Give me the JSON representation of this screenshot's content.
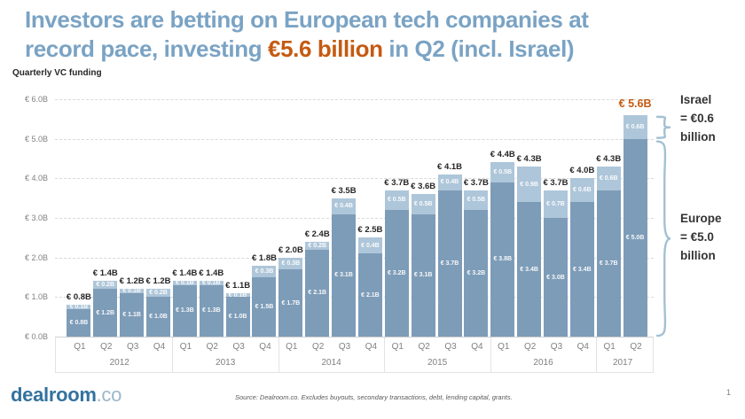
{
  "title": {
    "line1": "Investors are betting on European tech companies at",
    "line2_pre": "record pace, investing ",
    "line2_highlight": "€5.6 billion",
    "line2_post": " in Q2 (incl. Israel)"
  },
  "subtitle": "Quarterly VC funding",
  "annotations": {
    "israel_lines": [
      "Israel",
      "= €0.6",
      "billion"
    ],
    "europe_lines": [
      "Europe",
      "= €5.0",
      "billion"
    ]
  },
  "footer": {
    "logo_main": "dealroom",
    "logo_suffix": ".co",
    "source": "Source: Dealroom.co. Excludes buyouts, secondary transactions, debt, lending capital, grants.",
    "page_number": "1"
  },
  "colors": {
    "title_blue": "#7aa3c4",
    "highlight_orange": "#c55a11",
    "europe_bar": "#7d9cb8",
    "israel_bar": "#aec6d9",
    "brace_blue": "#a3c0d4",
    "axis_text": "#808080",
    "grid_line": "#d9d9d9",
    "logo_blue": "#33729f",
    "logo_suffix_blue": "#9cb8cb"
  },
  "chart_data": {
    "type": "bar",
    "stacked": true,
    "title": "Quarterly VC funding",
    "unit": "EUR billions",
    "ylim": [
      0,
      6
    ],
    "grid": true,
    "series_names": [
      "Europe",
      "Israel"
    ],
    "yticks": [
      {
        "v": 0,
        "label": "€ 0.0B"
      },
      {
        "v": 1,
        "label": "€ 1.0B"
      },
      {
        "v": 2,
        "label": "€ 2.0B"
      },
      {
        "v": 3,
        "label": "€ 3.0B"
      },
      {
        "v": 4,
        "label": "€ 4.0B"
      },
      {
        "v": 5,
        "label": "€ 5.0B"
      },
      {
        "v": 6,
        "label": "€ 6.0B"
      }
    ],
    "groups": [
      {
        "year": "2012",
        "bars": [
          {
            "quarter": "Q1",
            "europe": 0.8,
            "israel": 0.1,
            "total": 0.8,
            "europe_label": "€ 0.8B",
            "israel_label": "€ 0.1B",
            "total_label": "€ 0.8B"
          },
          {
            "quarter": "Q2",
            "europe": 1.2,
            "israel": 0.2,
            "total": 1.4,
            "europe_label": "€ 1.2B",
            "israel_label": "€ 0.2B",
            "total_label": "€ 1.4B"
          },
          {
            "quarter": "Q3",
            "europe": 1.1,
            "israel": 0.1,
            "total": 1.2,
            "europe_label": "€ 1.1B",
            "israel_label": "€ 0.1B",
            "total_label": "€ 1.2B"
          },
          {
            "quarter": "Q4",
            "europe": 1.0,
            "israel": 0.2,
            "total": 1.2,
            "europe_label": "€ 1.0B",
            "israel_label": "€ 0.2B",
            "total_label": "€ 1.2B"
          }
        ]
      },
      {
        "year": "2013",
        "bars": [
          {
            "quarter": "Q1",
            "europe": 1.3,
            "israel": 0.1,
            "total": 1.4,
            "europe_label": "€ 1.3B",
            "israel_label": "€ 0.1B",
            "total_label": "€ 1.4B"
          },
          {
            "quarter": "Q2",
            "europe": 1.3,
            "israel": 0.1,
            "total": 1.4,
            "europe_label": "€ 1.3B",
            "israel_label": "€ 0.1B",
            "total_label": "€ 1.4B"
          },
          {
            "quarter": "Q3",
            "europe": 1.0,
            "israel": 0.1,
            "total": 1.1,
            "europe_label": "€ 1.0B",
            "israel_label": "€ 0.1B",
            "total_label": "€ 1.1B"
          },
          {
            "quarter": "Q4",
            "europe": 1.5,
            "israel": 0.3,
            "total": 1.8,
            "europe_label": "€ 1.5B",
            "israel_label": "€ 0.3B",
            "total_label": "€ 1.8B"
          }
        ]
      },
      {
        "year": "2014",
        "bars": [
          {
            "quarter": "Q1",
            "europe": 1.7,
            "israel": 0.3,
            "total": 2.0,
            "europe_label": "€ 1.7B",
            "israel_label": "€ 0.3B",
            "total_label": "€ 2.0B"
          },
          {
            "quarter": "Q2",
            "europe": 2.1,
            "israel": 0.2,
            "total": 2.4,
            "europe_label": "€ 2.1B",
            "israel_label": "€ 0.2B",
            "total_label": "€ 2.4B"
          },
          {
            "quarter": "Q3",
            "europe": 3.1,
            "israel": 0.4,
            "total": 3.5,
            "europe_label": "€ 3.1B",
            "israel_label": "€ 0.4B",
            "total_label": "€ 3.5B"
          },
          {
            "quarter": "Q4",
            "europe": 2.1,
            "israel": 0.4,
            "total": 2.5,
            "europe_label": "€ 2.1B",
            "israel_label": "€ 0.4B",
            "total_label": "€ 2.5B"
          }
        ]
      },
      {
        "year": "2015",
        "bars": [
          {
            "quarter": "Q1",
            "europe": 3.2,
            "israel": 0.5,
            "total": 3.7,
            "europe_label": "€ 3.2B",
            "israel_label": "€ 0.5B",
            "total_label": "€ 3.7B"
          },
          {
            "quarter": "Q2",
            "europe": 3.1,
            "israel": 0.5,
            "total": 3.6,
            "europe_label": "€ 3.1B",
            "israel_label": "€ 0.5B",
            "total_label": "€ 3.6B"
          },
          {
            "quarter": "Q3",
            "europe": 3.7,
            "israel": 0.4,
            "total": 4.1,
            "europe_label": "€ 3.7B",
            "israel_label": "€ 0.4B",
            "total_label": "€ 4.1B"
          },
          {
            "quarter": "Q4",
            "europe": 3.2,
            "israel": 0.5,
            "total": 3.7,
            "europe_label": "€ 3.2B",
            "israel_label": "€ 0.5B",
            "total_label": "€ 3.7B"
          }
        ]
      },
      {
        "year": "2016",
        "bars": [
          {
            "quarter": "Q1",
            "europe": 3.8,
            "israel": 0.5,
            "total": 4.4,
            "europe_label": "€ 3.8B",
            "israel_label": "€ 0.5B",
            "total_label": "€ 4.4B"
          },
          {
            "quarter": "Q2",
            "europe": 3.4,
            "israel": 0.9,
            "total": 4.3,
            "europe_label": "€ 3.4B",
            "israel_label": "€ 0.9B",
            "total_label": "€ 4.3B"
          },
          {
            "quarter": "Q3",
            "europe": 3.0,
            "israel": 0.7,
            "total": 3.7,
            "europe_label": "€ 3.0B",
            "israel_label": "€ 0.7B",
            "total_label": "€ 3.7B"
          },
          {
            "quarter": "Q4",
            "europe": 3.4,
            "israel": 0.6,
            "total": 4.0,
            "europe_label": "€ 3.4B",
            "israel_label": "€ 0.6B",
            "total_label": "€ 4.0B"
          }
        ]
      },
      {
        "year": "2017",
        "bars": [
          {
            "quarter": "Q1",
            "europe": 3.7,
            "israel": 0.6,
            "total": 4.3,
            "europe_label": "€ 3.7B",
            "israel_label": "€ 0.6B",
            "total_label": "€ 4.3B"
          },
          {
            "quarter": "Q2",
            "europe": 5.0,
            "israel": 0.6,
            "total": 5.6,
            "europe_label": "€ 5.0B",
            "israel_label": "€ 0.6B",
            "total_label": "€ 5.6B",
            "highlight": true
          }
        ]
      }
    ]
  }
}
